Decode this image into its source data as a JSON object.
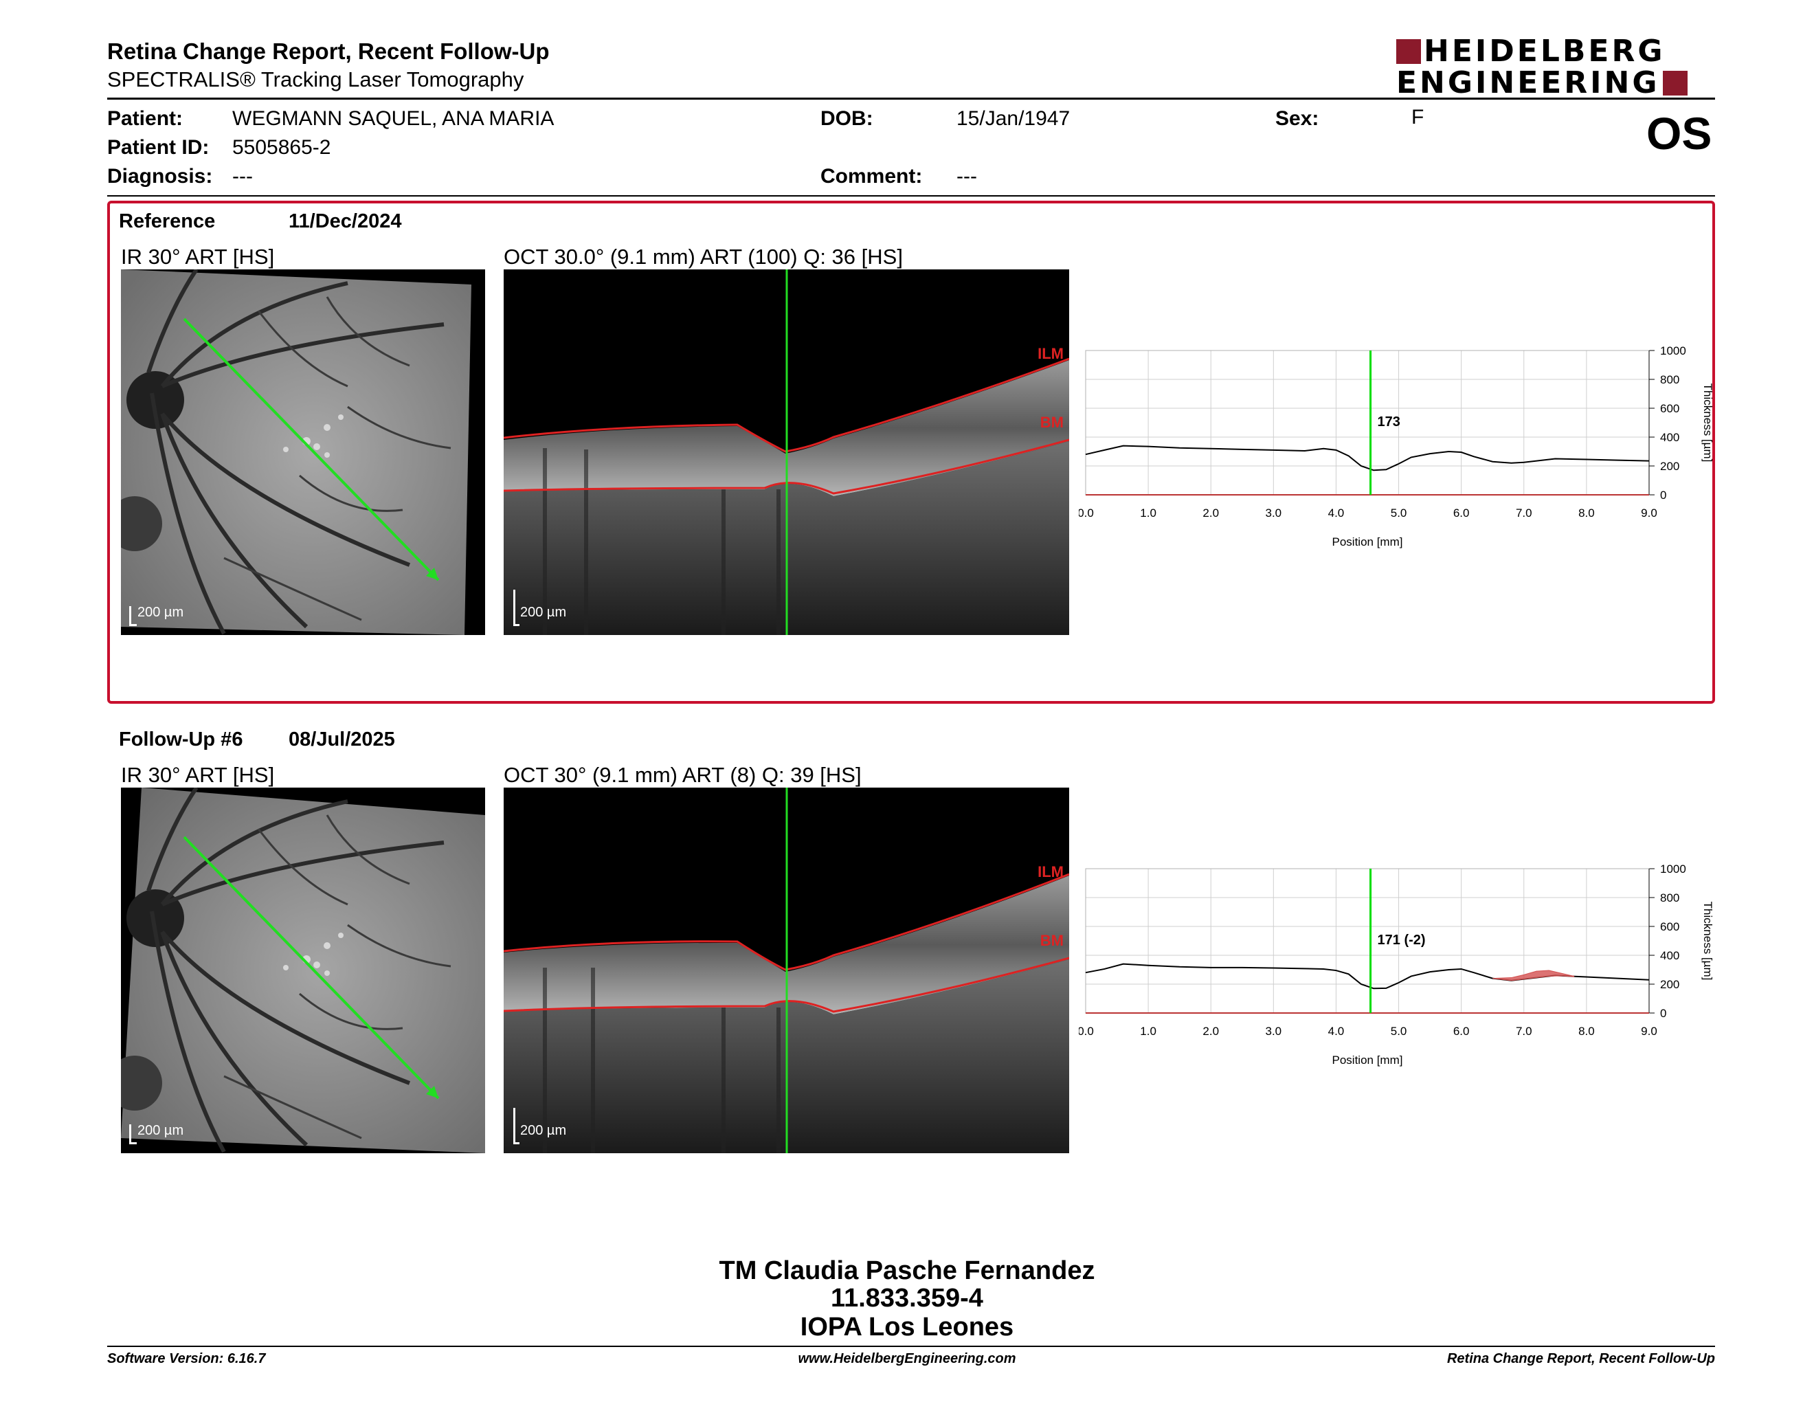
{
  "header": {
    "title": "Retina Change Report, Recent Follow-Up",
    "subtitle": "SPECTRALIS® Tracking Laser Tomography",
    "logo_line1": "HEIDELBERG",
    "logo_line2": "ENGINEERING",
    "eye": "OS"
  },
  "patient": {
    "name_label": "Patient:",
    "name": "WEGMANN SAQUEL, ANA MARIA",
    "id_label": "Patient ID:",
    "id": "5505865-2",
    "diagnosis_label": "Diagnosis:",
    "diagnosis": "---",
    "dob_label": "DOB:",
    "dob": "15/Jan/1947",
    "comment_label": "Comment:",
    "comment": "---",
    "sex_label": "Sex:",
    "sex": "F"
  },
  "reference": {
    "label": "Reference",
    "date": "11/Dec/2024",
    "ir_caption": "IR 30° ART [HS]",
    "oct_caption": "OCT 30.0° (9.1 mm) ART (100) Q: 36 [HS]",
    "scale_ir": "200 µm",
    "scale_oct": "200 µm",
    "ilm": "ILM",
    "bm": "BM"
  },
  "followup": {
    "label": "Follow-Up #6",
    "date": "08/Jul/2025",
    "ir_caption": "IR 30° ART [HS]",
    "oct_caption": "OCT 30° (9.1 mm) ART (8) Q: 39 [HS]",
    "scale_ir": "200 µm",
    "scale_oct": "200 µm",
    "ilm": "ILM",
    "bm": "BM"
  },
  "chart_data": [
    {
      "type": "line",
      "xlabel": "Position [mm]",
      "ylabel": "Thickness [µm]",
      "xlim": [
        0,
        9
      ],
      "ylim": [
        0,
        1000
      ],
      "x_ticks": [
        "0.0",
        "1.0",
        "2.0",
        "3.0",
        "4.0",
        "5.0",
        "6.0",
        "7.0",
        "8.0",
        "9.0"
      ],
      "y_ticks": [
        "0",
        "200",
        "400",
        "600",
        "800",
        "1000"
      ],
      "cursor_x": 4.55,
      "cursor_label": "173",
      "cursor_color": "#00dd00",
      "series": [
        {
          "x": [
            0.0,
            0.3,
            0.6,
            1.0,
            1.5,
            2.0,
            2.5,
            3.0,
            3.5,
            3.8,
            4.0,
            4.2,
            4.4,
            4.6,
            4.8,
            5.0,
            5.2,
            5.5,
            5.8,
            6.0,
            6.2,
            6.5,
            6.8,
            7.0,
            7.5,
            8.0,
            8.5,
            9.0
          ],
          "y": [
            280,
            310,
            340,
            335,
            325,
            320,
            315,
            310,
            305,
            320,
            310,
            270,
            200,
            170,
            175,
            215,
            260,
            285,
            300,
            295,
            265,
            230,
            220,
            225,
            250,
            245,
            240,
            235
          ],
          "color": "#000000"
        }
      ]
    },
    {
      "type": "line",
      "xlabel": "Position [mm]",
      "ylabel": "Thickness [µm]",
      "xlim": [
        0,
        9
      ],
      "ylim": [
        0,
        1000
      ],
      "x_ticks": [
        "0.0",
        "1.0",
        "2.0",
        "3.0",
        "4.0",
        "5.0",
        "6.0",
        "7.0",
        "8.0",
        "9.0"
      ],
      "y_ticks": [
        "0",
        "200",
        "400",
        "600",
        "800",
        "1000"
      ],
      "cursor_x": 4.55,
      "cursor_label": "171 (-2)",
      "cursor_color": "#00dd00",
      "series": [
        {
          "x": [
            0.0,
            0.3,
            0.6,
            1.0,
            1.5,
            2.0,
            2.5,
            3.0,
            3.5,
            3.8,
            4.0,
            4.2,
            4.4,
            4.6,
            4.8,
            5.0,
            5.2,
            5.5,
            5.8,
            6.0,
            6.2,
            6.5,
            6.8,
            7.0,
            7.5,
            8.0,
            8.5,
            9.0
          ],
          "y": [
            280,
            305,
            340,
            330,
            320,
            315,
            315,
            312,
            308,
            305,
            295,
            270,
            200,
            170,
            172,
            210,
            255,
            285,
            300,
            305,
            280,
            240,
            225,
            235,
            260,
            250,
            240,
            230
          ],
          "color": "#000000"
        },
        {
          "x": [
            6.5,
            6.8,
            7.0,
            7.2,
            7.4,
            7.6,
            7.8
          ],
          "y": [
            240,
            245,
            265,
            290,
            295,
            275,
            255
          ],
          "color": "#d35050",
          "fill_to": [
            240,
            225,
            235,
            245,
            255,
            258,
            252
          ]
        }
      ]
    }
  ],
  "signature": {
    "name": "TM Claudia Pasche Fernandez",
    "id": "11.833.359-4",
    "place": "IOPA Los Leones"
  },
  "footer": {
    "left": "Software Version: 6.16.7",
    "center": "www.HeidelbergEngineering.com",
    "right": "Retina Change Report, Recent Follow-Up"
  }
}
